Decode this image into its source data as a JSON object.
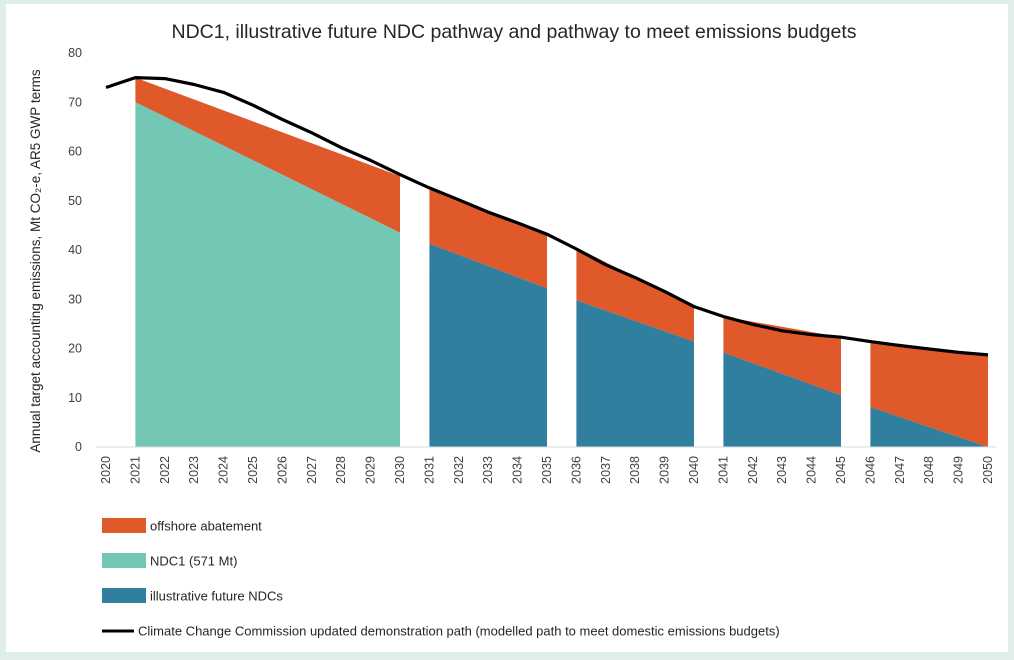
{
  "chart_data": {
    "type": "area",
    "title": "NDC1, illustrative future NDC pathway and pathway to meet emissions budgets",
    "ylabel": "Annual target accounting emissions, Mt CO₂-e, AR5 GWP terms",
    "xlabel": "",
    "ylim": [
      0,
      80
    ],
    "yticks": [
      0,
      10,
      20,
      30,
      40,
      50,
      60,
      70,
      80
    ],
    "categories": [
      "2020",
      "2021",
      "2022",
      "2023",
      "2024",
      "2025",
      "2026",
      "2027",
      "2028",
      "2029",
      "2030",
      "2031",
      "2032",
      "2033",
      "2034",
      "2035",
      "2036",
      "2037",
      "2038",
      "2039",
      "2040",
      "2041",
      "2042",
      "2043",
      "2044",
      "2045",
      "2046",
      "2047",
      "2048",
      "2049",
      "2050"
    ],
    "grid": false,
    "legend_position": "bottom",
    "series": [
      {
        "name": "offshore abatement",
        "color": "#e0592a",
        "kind": "stacked-area",
        "segments": [
          {
            "x": [
              "2021",
              "2030"
            ],
            "upper": [
              75.0,
              55.0
            ],
            "lower": [
              70.0,
              43.5
            ]
          },
          {
            "x": [
              "2031",
              "2035"
            ],
            "upper": [
              52.5,
              43.3
            ],
            "lower": [
              41.3,
              32.2
            ]
          },
          {
            "x": [
              "2036",
              "2040"
            ],
            "upper": [
              40.5,
              28.5
            ],
            "lower": [
              29.8,
              21.4
            ]
          },
          {
            "x": [
              "2041",
              "2045"
            ],
            "upper": [
              26.5,
              22.3
            ],
            "lower": [
              19.2,
              10.5
            ]
          },
          {
            "x": [
              "2046",
              "2050"
            ],
            "upper": [
              21.6,
              18.7
            ],
            "lower": [
              8.1,
              0.0
            ]
          }
        ]
      },
      {
        "name": "NDC1 (571 Mt)",
        "color": "#73c7b5",
        "kind": "area",
        "segments": [
          {
            "x": [
              "2021",
              "2030"
            ],
            "values": [
              70.0,
              43.5
            ]
          }
        ]
      },
      {
        "name": "illustrative future NDCs",
        "color": "#317f9e",
        "kind": "area",
        "segments": [
          {
            "x": [
              "2031",
              "2035"
            ],
            "values": [
              41.3,
              32.2
            ]
          },
          {
            "x": [
              "2036",
              "2040"
            ],
            "values": [
              29.8,
              21.4
            ]
          },
          {
            "x": [
              "2041",
              "2045"
            ],
            "values": [
              19.2,
              10.5
            ]
          },
          {
            "x": [
              "2046",
              "2050"
            ],
            "values": [
              8.1,
              0.0
            ]
          }
        ]
      },
      {
        "name": "Climate Change Commission updated demonstration path (modelled path to meet domestic emissions budgets)",
        "color": "#000000",
        "kind": "line",
        "values": [
          73.0,
          75.0,
          74.8,
          73.6,
          72.0,
          69.4,
          66.5,
          63.8,
          60.8,
          58.2,
          55.3,
          52.6,
          50.2,
          47.7,
          45.5,
          43.2,
          40.2,
          37.0,
          34.4,
          31.6,
          28.5,
          26.5,
          24.9,
          23.6,
          22.8,
          22.3,
          21.4,
          20.6,
          19.9,
          19.2,
          18.7
        ]
      }
    ]
  }
}
